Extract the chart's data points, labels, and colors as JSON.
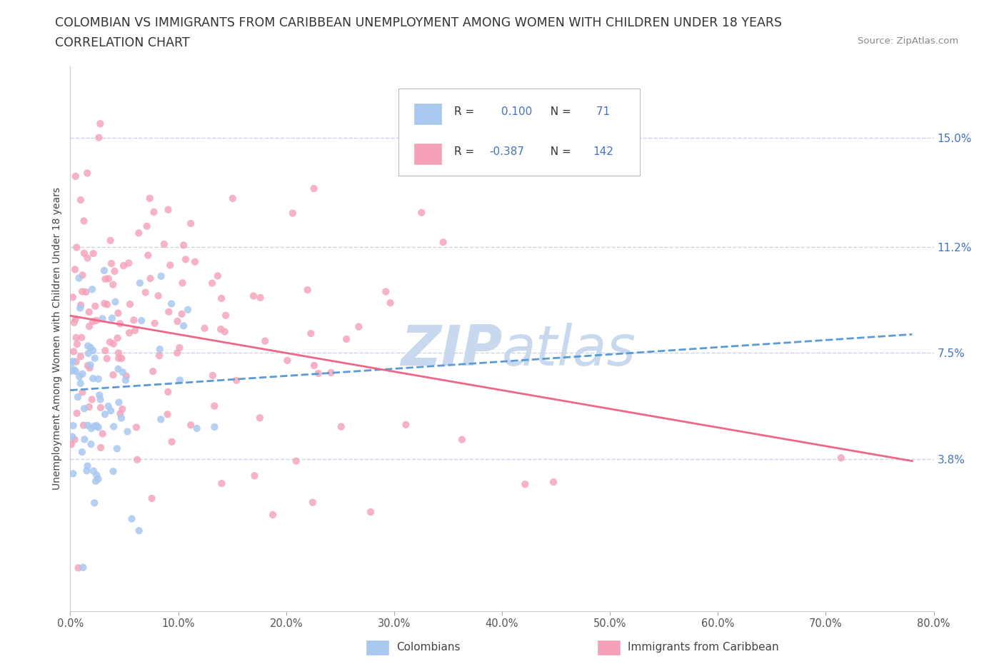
{
  "title_line1": "COLOMBIAN VS IMMIGRANTS FROM CARIBBEAN UNEMPLOYMENT AMONG WOMEN WITH CHILDREN UNDER 18 YEARS",
  "title_line2": "CORRELATION CHART",
  "source_text": "Source: ZipAtlas.com",
  "ylabel": "Unemployment Among Women with Children Under 18 years",
  "xlim": [
    0.0,
    0.8
  ],
  "ylim": [
    -0.015,
    0.175
  ],
  "xtick_labels": [
    "0.0%",
    "10.0%",
    "20.0%",
    "30.0%",
    "40.0%",
    "50.0%",
    "60.0%",
    "70.0%",
    "80.0%"
  ],
  "xtick_vals": [
    0.0,
    0.1,
    0.2,
    0.3,
    0.4,
    0.5,
    0.6,
    0.7,
    0.8
  ],
  "ytick_right_labels": [
    "15.0%",
    "11.2%",
    "7.5%",
    "3.8%"
  ],
  "ytick_right_vals": [
    0.15,
    0.112,
    0.075,
    0.038
  ],
  "hline_vals": [
    0.15,
    0.112,
    0.075,
    0.038
  ],
  "R_colombian": 0.1,
  "N_colombian": 71,
  "R_caribbean": -0.387,
  "N_caribbean": 142,
  "color_colombian": "#A8C8F0",
  "color_caribbean": "#F4A0B8",
  "color_trendline_colombian": "#5B9BD5",
  "color_trendline_caribbean": "#EE6688",
  "color_label_blue": "#4472C4",
  "watermark_color": "#C8D8EE",
  "background_color": "#FFFFFF",
  "grid_color": "#C8D4E8",
  "title_fontsize": 12.5,
  "axis_label_fontsize": 10,
  "tick_fontsize": 10.5,
  "legend_label": [
    "Colombians",
    "Immigrants from Caribbean"
  ]
}
